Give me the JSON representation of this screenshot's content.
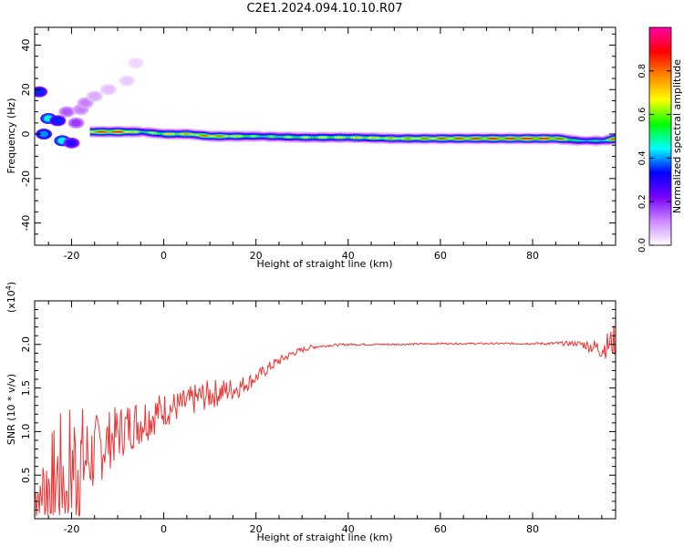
{
  "title": "C2E1.2024.094.10.10.R07",
  "chart_data": [
    {
      "type": "heatmap",
      "xlabel": "Height of straight line (km)",
      "ylabel": "Frequency (Hz)",
      "xlim": [
        -28,
        98
      ],
      "ylim": [
        -50,
        48
      ],
      "xticks": [
        -20,
        0,
        20,
        40,
        60,
        80
      ],
      "yticks": [
        -40,
        -20,
        0,
        20,
        40
      ],
      "colorbar": {
        "label": "Normalized spectral amplitude",
        "range": [
          0,
          1
        ],
        "ticks": [
          "0.0",
          "0.2",
          "0.4",
          "0.6",
          "0.8"
        ],
        "colors": [
          "#ffffff",
          "#cc88ff",
          "#7700ff",
          "#0000ff",
          "#00ffff",
          "#00ff00",
          "#ffff00",
          "#ff8800",
          "#ff0000",
          "#ff00aa"
        ]
      },
      "main_band": {
        "description_free": true,
        "x": [
          -16,
          -10,
          -5,
          0,
          5,
          10,
          20,
          30,
          40,
          50,
          60,
          70,
          80,
          85,
          90,
          95,
          98
        ],
        "center_hz": [
          1,
          1,
          1,
          0,
          0,
          -1,
          -1,
          -1.5,
          -1.5,
          -2,
          -2,
          -2,
          -2,
          -2,
          -3,
          -3,
          -2
        ],
        "peak_amplitude": [
          0.85,
          0.95,
          0.6,
          0.7,
          0.75,
          0.85,
          0.6,
          0.65,
          0.7,
          0.75,
          0.85,
          0.9,
          0.95,
          0.9,
          0.5,
          0.55,
          0.95
        ]
      },
      "low_height_blobs": [
        {
          "x": -27,
          "y": 19,
          "a": 0.35
        },
        {
          "x": -25,
          "y": 7,
          "a": 0.45
        },
        {
          "x": -23,
          "y": 6,
          "a": 0.35
        },
        {
          "x": -26,
          "y": 0,
          "a": 0.4
        },
        {
          "x": -22,
          "y": -3,
          "a": 0.45
        },
        {
          "x": -20,
          "y": -4,
          "a": 0.3
        },
        {
          "x": -21,
          "y": 10,
          "a": 0.15
        },
        {
          "x": -18,
          "y": 11,
          "a": 0.12
        },
        {
          "x": -17,
          "y": 14,
          "a": 0.12
        },
        {
          "x": -19,
          "y": 5,
          "a": 0.18
        },
        {
          "x": -15,
          "y": 17,
          "a": 0.08
        },
        {
          "x": -12,
          "y": 20,
          "a": 0.06
        },
        {
          "x": -8,
          "y": 24,
          "a": 0.05
        },
        {
          "x": -6,
          "y": 32,
          "a": 0.04
        }
      ]
    },
    {
      "type": "line",
      "xlabel": "Height of straight line (km)",
      "ylabel": "SNR (10 * v/v)",
      "multiplier_label": "(x10",
      "multiplier_exp": "4",
      "xlim": [
        -28,
        98
      ],
      "ylim": [
        0,
        2.5
      ],
      "xticks": [
        -20,
        0,
        20,
        40,
        60,
        80
      ],
      "yticks": [
        0.5,
        1.0,
        1.5,
        2.0
      ],
      "color": "#ee3333",
      "trend": {
        "x": [
          -28,
          -24,
          -20,
          -16,
          -12,
          -8,
          -4,
          0,
          4,
          8,
          12,
          16,
          20,
          24,
          28,
          32,
          36,
          40,
          50,
          60,
          70,
          80,
          90,
          95,
          98
        ],
        "mean": [
          0.25,
          0.45,
          0.6,
          0.7,
          0.9,
          1.05,
          1.15,
          1.25,
          1.3,
          1.4,
          1.45,
          1.5,
          1.62,
          1.78,
          1.9,
          1.97,
          1.99,
          2.0,
          2.0,
          2.01,
          2.01,
          2.01,
          2.01,
          1.95,
          2.05
        ],
        "noise": [
          0.3,
          0.6,
          0.9,
          0.5,
          0.35,
          0.3,
          0.28,
          0.2,
          0.18,
          0.18,
          0.16,
          0.12,
          0.08,
          0.06,
          0.04,
          0.025,
          0.015,
          0.012,
          0.01,
          0.01,
          0.01,
          0.012,
          0.03,
          0.12,
          0.2
        ]
      }
    }
  ]
}
